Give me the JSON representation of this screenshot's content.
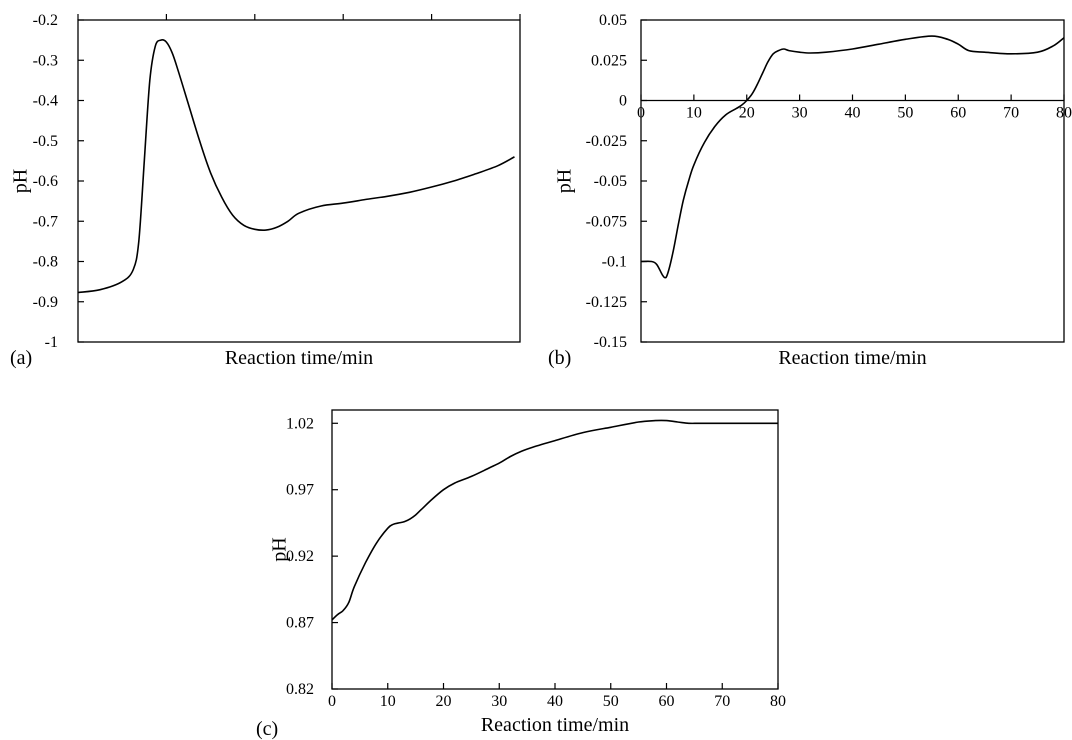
{
  "chart_data": [
    {
      "panel": "(a)",
      "type": "line",
      "xlabel": "Reaction time/min",
      "ylabel": "pH",
      "xlim": [
        0,
        80
      ],
      "xticks": [
        0,
        16,
        32,
        48,
        64,
        80
      ],
      "xtick_labels_shown": false,
      "ylim": [
        -1,
        -0.2
      ],
      "yticks": [
        -0.2,
        -0.3,
        -0.4,
        -0.5,
        -0.6,
        -0.7,
        -0.8,
        -0.9,
        -1
      ],
      "ytick_labels": [
        "-0.2",
        "-0.3",
        "-0.4",
        "-0.5",
        "-0.6",
        "-0.7",
        "-0.8",
        "-0.9",
        "-1"
      ],
      "grid": false,
      "series": [
        {
          "x": [
            0,
            4,
            8,
            10,
            11,
            12,
            13,
            14,
            15,
            16,
            17,
            18,
            20,
            22,
            24,
            26,
            28,
            30,
            32,
            34,
            36,
            38,
            40,
            44,
            48,
            52,
            56,
            60,
            64,
            68,
            72,
            76,
            79
          ],
          "y": [
            -0.877,
            -0.87,
            -0.85,
            -0.82,
            -0.75,
            -0.55,
            -0.35,
            -0.265,
            -0.25,
            -0.255,
            -0.28,
            -0.32,
            -0.41,
            -0.5,
            -0.58,
            -0.64,
            -0.685,
            -0.71,
            -0.72,
            -0.722,
            -0.715,
            -0.7,
            -0.68,
            -0.662,
            -0.655,
            -0.646,
            -0.638,
            -0.628,
            -0.615,
            -0.6,
            -0.582,
            -0.562,
            -0.54
          ]
        }
      ]
    },
    {
      "panel": "(b)",
      "type": "line",
      "xlabel": "Reaction time/min",
      "ylabel": "pH",
      "xlim": [
        0,
        80
      ],
      "xticks": [
        0,
        10,
        20,
        30,
        40,
        50,
        60,
        70,
        80
      ],
      "xtick_labels": [
        "0",
        "10",
        "20",
        "30",
        "40",
        "50",
        "60",
        "70",
        "80"
      ],
      "ylim": [
        -0.15,
        0.05
      ],
      "yticks": [
        0.05,
        0.025,
        0,
        -0.025,
        -0.05,
        -0.075,
        -0.1,
        -0.125,
        -0.15
      ],
      "ytick_labels": [
        "0.05",
        "0.025",
        "0",
        "-0.025",
        "-0.05",
        "-0.075",
        "-0.1",
        "-0.125",
        "-0.15"
      ],
      "grid": false,
      "series": [
        {
          "x": [
            0,
            2,
            3,
            4,
            4.5,
            5,
            6,
            7,
            8,
            9,
            10,
            12,
            14,
            16,
            18,
            19,
            20,
            21,
            22,
            23,
            24,
            25,
            26,
            27,
            28,
            30,
            32,
            35,
            40,
            45,
            50,
            55,
            58,
            60,
            62,
            65,
            70,
            75,
            78,
            80
          ],
          "y": [
            -0.1,
            -0.1,
            -0.102,
            -0.108,
            -0.11,
            -0.108,
            -0.095,
            -0.078,
            -0.062,
            -0.05,
            -0.04,
            -0.026,
            -0.016,
            -0.009,
            -0.005,
            -0.003,
            0,
            0.004,
            0.01,
            0.017,
            0.024,
            0.029,
            0.031,
            0.032,
            0.031,
            0.03,
            0.0295,
            0.03,
            0.032,
            0.035,
            0.038,
            0.04,
            0.038,
            0.035,
            0.031,
            0.03,
            0.029,
            0.03,
            0.034,
            0.039
          ]
        }
      ]
    },
    {
      "panel": "(c)",
      "type": "line",
      "xlabel": "Reaction time/min",
      "ylabel": "pH",
      "xlim": [
        0,
        80
      ],
      "xticks": [
        0,
        10,
        20,
        30,
        40,
        50,
        60,
        70,
        80
      ],
      "xtick_labels": [
        "0",
        "10",
        "20",
        "30",
        "40",
        "50",
        "60",
        "70",
        "80"
      ],
      "ylim": [
        0.82,
        1.03
      ],
      "yticks": [
        0.82,
        0.87,
        0.92,
        0.97,
        1.02
      ],
      "ytick_labels": [
        "0.82",
        "0.87",
        "0.92",
        "0.97",
        "1.02"
      ],
      "grid": false,
      "series": [
        {
          "x": [
            0,
            1,
            2,
            3,
            4,
            6,
            8,
            10,
            11,
            12,
            13,
            14,
            15,
            16,
            18,
            20,
            22,
            25,
            28,
            30,
            32,
            34,
            36,
            40,
            45,
            50,
            55,
            58,
            60,
            62,
            64,
            66,
            70,
            75,
            80
          ],
          "y": [
            0.872,
            0.876,
            0.879,
            0.885,
            0.897,
            0.915,
            0.93,
            0.941,
            0.944,
            0.945,
            0.946,
            0.948,
            0.951,
            0.955,
            0.963,
            0.97,
            0.975,
            0.98,
            0.986,
            0.99,
            0.995,
            0.999,
            1.002,
            1.007,
            1.013,
            1.017,
            1.021,
            1.022,
            1.022,
            1.021,
            1.02,
            1.02,
            1.02,
            1.02,
            1.02
          ]
        }
      ]
    }
  ]
}
